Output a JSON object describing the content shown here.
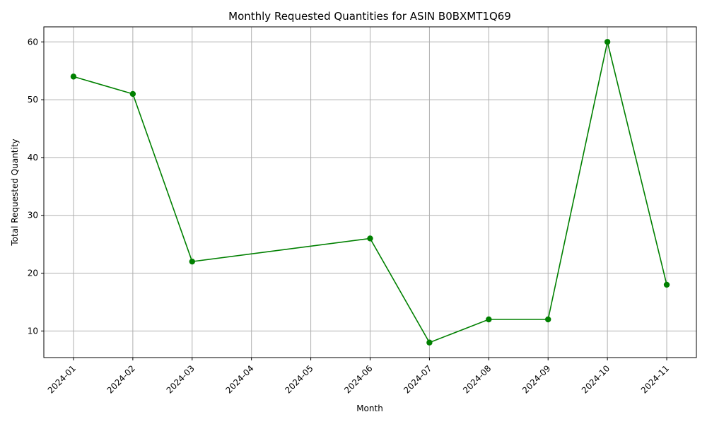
{
  "chart_data": {
    "type": "line",
    "title": "Monthly Requested Quantities for ASIN B0BXMT1Q69",
    "xlabel": "Month",
    "ylabel": "Total Requested Quantity",
    "x_ticks": [
      "2024-01",
      "2024-02",
      "2024-03",
      "2024-04",
      "2024-05",
      "2024-06",
      "2024-07",
      "2024-08",
      "2024-09",
      "2024-10",
      "2024-11"
    ],
    "y_ticks": [
      10,
      20,
      30,
      40,
      50,
      60
    ],
    "xlim": [
      "2023-12",
      "2024-11"
    ],
    "ylim": [
      5.4,
      62.6
    ],
    "grid": true,
    "series": [
      {
        "color": "#008000",
        "marker": "circle",
        "points": [
          {
            "x": "2024-01",
            "y": 54
          },
          {
            "x": "2024-02",
            "y": 51
          },
          {
            "x": "2024-03",
            "y": 22
          },
          {
            "x": "2024-06",
            "y": 26
          },
          {
            "x": "2024-07",
            "y": 8
          },
          {
            "x": "2024-08",
            "y": 12
          },
          {
            "x": "2024-09",
            "y": 12
          },
          {
            "x": "2024-10",
            "y": 60
          },
          {
            "x": "2024-11",
            "y": 18
          }
        ]
      }
    ]
  }
}
